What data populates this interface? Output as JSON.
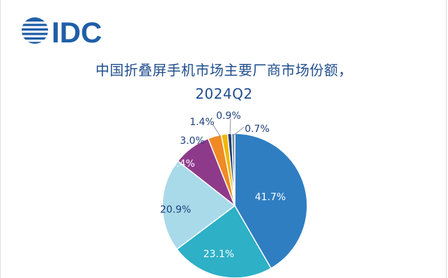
{
  "logo": {
    "text": "IDC"
  },
  "chart_data": {
    "type": "pie",
    "title": "中国折叠屏手机市场主要厂商市场份额，",
    "subtitle": "2024Q2",
    "values": [
      41.7,
      23.1,
      20.9,
      8.4,
      3.0,
      1.4,
      0.9,
      0.7
    ],
    "labels": [
      "41.7%",
      "23.1%",
      "20.9%",
      "8.4%",
      "3.0%",
      "1.4%",
      "0.9%",
      "0.7%"
    ],
    "colors": [
      "#2f7ec2",
      "#2eb0c6",
      "#a8daea",
      "#8e3a8a",
      "#f08a24",
      "#f2b705",
      "#1e3f73",
      "#7d8c99"
    ],
    "label_colors": [
      "#ffffff",
      "#ffffff",
      "#1f3f7a",
      "#ffffff",
      "#1f3f7a",
      "#1f3f7a",
      "#1f3f7a",
      "#1f3f7a"
    ]
  }
}
